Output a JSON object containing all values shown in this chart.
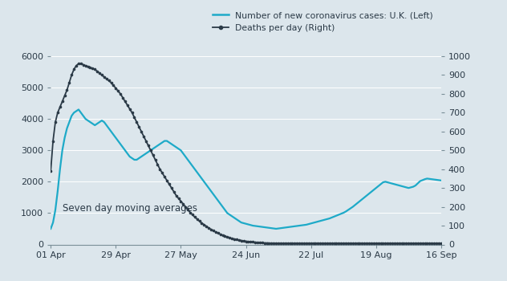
{
  "legend_line1": "Number of new coronavirus cases: U.K. (Left)",
  "legend_line2": "Deaths per day (Right)",
  "annotation": "Seven day moving averages",
  "bg_color": "#dce6ec",
  "line1_color": "#1eaac8",
  "line2_color": "#2b3a47",
  "ylim_left": [
    0,
    6000
  ],
  "ylim_right": [
    0,
    1000
  ],
  "yticks_left": [
    0,
    1000,
    2000,
    3000,
    4000,
    5000,
    6000
  ],
  "yticks_right": [
    0,
    100,
    200,
    300,
    400,
    500,
    600,
    700,
    800,
    900,
    1000
  ],
  "xtick_labels": [
    "01 Apr",
    "29 Apr",
    "27 May",
    "24 Jun",
    "22 Jul",
    "19 Aug",
    "16 Sep"
  ],
  "xtick_positions": [
    0,
    28,
    56,
    84,
    112,
    140,
    168
  ],
  "n_days": 169,
  "cases": [
    500,
    700,
    1100,
    1700,
    2400,
    3000,
    3400,
    3700,
    3900,
    4100,
    4200,
    4250,
    4300,
    4200,
    4100,
    4000,
    3950,
    3900,
    3850,
    3800,
    3850,
    3900,
    3950,
    3900,
    3800,
    3700,
    3600,
    3500,
    3400,
    3300,
    3200,
    3100,
    3000,
    2900,
    2800,
    2750,
    2700,
    2700,
    2750,
    2800,
    2850,
    2900,
    2950,
    3000,
    3050,
    3100,
    3150,
    3200,
    3250,
    3300,
    3300,
    3250,
    3200,
    3150,
    3100,
    3050,
    3000,
    2900,
    2800,
    2700,
    2600,
    2500,
    2400,
    2300,
    2200,
    2100,
    2000,
    1900,
    1800,
    1700,
    1600,
    1500,
    1400,
    1300,
    1200,
    1100,
    1000,
    950,
    900,
    850,
    800,
    750,
    700,
    680,
    660,
    640,
    620,
    600,
    590,
    580,
    570,
    560,
    550,
    540,
    530,
    520,
    510,
    500,
    510,
    520,
    530,
    540,
    550,
    560,
    570,
    580,
    590,
    600,
    610,
    620,
    630,
    650,
    670,
    690,
    710,
    730,
    750,
    770,
    790,
    810,
    830,
    860,
    890,
    920,
    950,
    980,
    1010,
    1050,
    1100,
    1150,
    1200,
    1260,
    1320,
    1380,
    1440,
    1500,
    1560,
    1620,
    1680,
    1740,
    1800,
    1860,
    1920,
    1980,
    2000,
    1980,
    1960,
    1940,
    1920,
    1900,
    1880,
    1860,
    1840,
    1820,
    1800,
    1820,
    1840,
    1880,
    1950,
    2020,
    2050,
    2080,
    2100,
    2090,
    2080,
    2070,
    2060,
    2050,
    2040
  ],
  "deaths": [
    390,
    550,
    650,
    700,
    730,
    760,
    790,
    820,
    860,
    900,
    930,
    950,
    960,
    960,
    955,
    950,
    945,
    940,
    935,
    930,
    920,
    910,
    900,
    890,
    880,
    870,
    860,
    845,
    830,
    815,
    800,
    780,
    760,
    740,
    720,
    700,
    675,
    650,
    625,
    600,
    575,
    550,
    525,
    500,
    475,
    450,
    425,
    400,
    380,
    360,
    340,
    320,
    300,
    280,
    260,
    245,
    230,
    215,
    200,
    185,
    170,
    158,
    146,
    135,
    124,
    114,
    105,
    96,
    88,
    80,
    73,
    66,
    60,
    54,
    49,
    44,
    40,
    36,
    32,
    29,
    26,
    23,
    21,
    19,
    17,
    15,
    14,
    13,
    12,
    11,
    10,
    9,
    8,
    8,
    7,
    7,
    7,
    6,
    6,
    6,
    6,
    6,
    6,
    6,
    6,
    6,
    6,
    6,
    6,
    6,
    6,
    6,
    6,
    6,
    6,
    6,
    6,
    6,
    6,
    6,
    6,
    6,
    6,
    6,
    6,
    6,
    6,
    6,
    6,
    6,
    6,
    6,
    6,
    6,
    6,
    6,
    6,
    6,
    6,
    6,
    6,
    6,
    6,
    6,
    6,
    6,
    6,
    6,
    6,
    6,
    6,
    6,
    6,
    6,
    6,
    6,
    6,
    6,
    6,
    6,
    6,
    6,
    6,
    6,
    6,
    6,
    6,
    6,
    6
  ]
}
